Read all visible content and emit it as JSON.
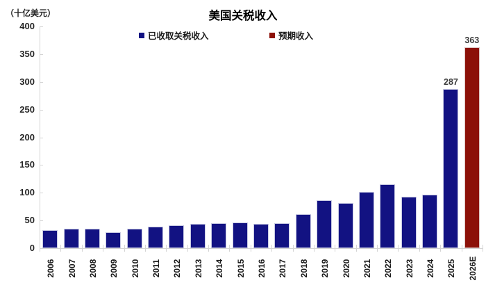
{
  "chart_title": "美国关税收入",
  "unit_label": "（十亿美元）",
  "chart_data": {
    "type": "bar",
    "title": "美国关税收入",
    "ylabel": "（十亿美元）",
    "xlabel": "",
    "ylim": [
      0,
      400
    ],
    "yticks": [
      0,
      50,
      100,
      150,
      200,
      250,
      300,
      350,
      400
    ],
    "grid": false,
    "legend_position": "top",
    "categories": [
      "2006",
      "2007",
      "2008",
      "2009",
      "2010",
      "2011",
      "2012",
      "2013",
      "2014",
      "2015",
      "2016",
      "2017",
      "2018",
      "2019",
      "2020",
      "2021",
      "2022",
      "2023",
      "2024",
      "2025",
      "2026E"
    ],
    "series": [
      {
        "name": "已收取关税收入",
        "color": "#121282",
        "values": [
          33,
          35,
          35,
          29,
          35,
          39,
          42,
          44,
          45,
          46,
          44,
          45,
          61,
          87,
          82,
          102,
          115,
          93,
          97,
          287,
          null
        ]
      },
      {
        "name": "预期收入",
        "color": "#8c1008",
        "values": [
          null,
          null,
          null,
          null,
          null,
          null,
          null,
          null,
          null,
          null,
          null,
          null,
          null,
          null,
          null,
          null,
          null,
          null,
          null,
          null,
          363
        ]
      }
    ],
    "data_labels": {
      "2025": "287",
      "2026E": "363"
    }
  },
  "colors": {
    "collected_bar": "#121282",
    "expected_bar": "#8c1008",
    "axis_line": "#d4d4d4",
    "text": "#262626"
  }
}
